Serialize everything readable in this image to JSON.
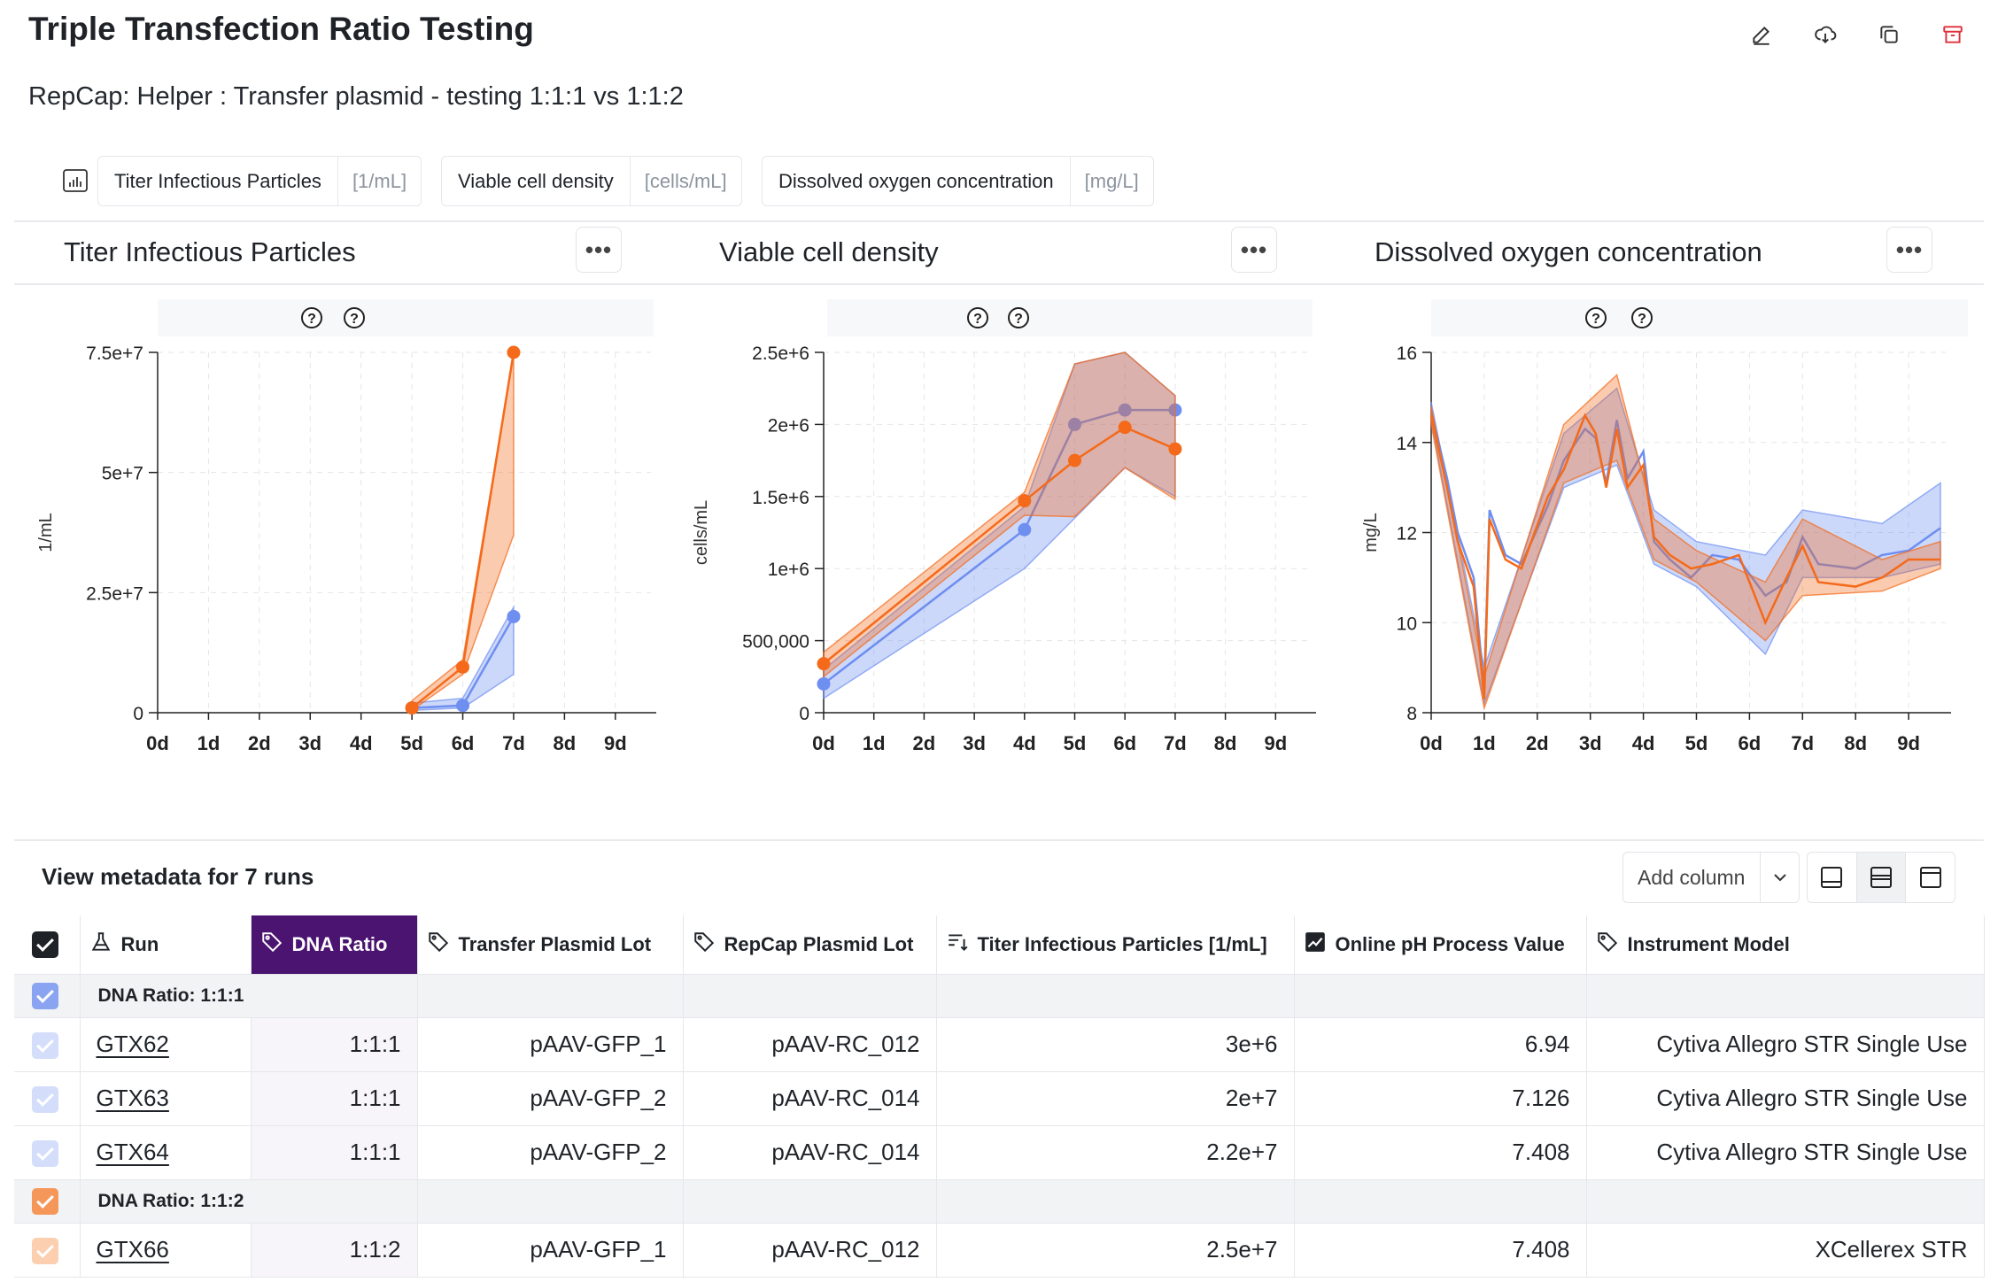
{
  "header": {
    "title": "Triple Transfection Ratio Testing",
    "subtitle": "RepCap: Helper : Transfer plasmid - testing 1:1:1 vs 1:1:2"
  },
  "toolbar": {
    "icons": [
      "pencil-icon",
      "download-icon",
      "duplicate-icon",
      "archive-icon"
    ]
  },
  "measurement_chips": [
    {
      "name": "Titer Infectious Particles",
      "unit": "[1/mL]"
    },
    {
      "name": "Viable cell density",
      "unit": "[cells/mL]"
    },
    {
      "name": "Dissolved oxygen concentration",
      "unit": "[mg/L]"
    }
  ],
  "colors": {
    "series_1_1_1": "#6e8ef0",
    "series_1_1_2": "#f46a1a",
    "highlight_column": "#4a1470",
    "accent_check": "#1f2328"
  },
  "chart_data": [
    {
      "type": "line",
      "title": "Titer Infectious Particles",
      "ylabel": "1/mL",
      "x_ticks": [
        "0d",
        "1d",
        "2d",
        "3d",
        "4d",
        "5d",
        "6d",
        "7d",
        "8d",
        "9d"
      ],
      "ylim": [
        0,
        75000000
      ],
      "y_ticks": [
        "0",
        "2.5e+7",
        "5e+7",
        "7.5e+7"
      ],
      "grid": true,
      "series": [
        {
          "values": [
            {
              "x": 5,
              "y": 1000000
            },
            {
              "x": 6,
              "y": 1500000
            },
            {
              "x": 7,
              "y": 20000000
            }
          ],
          "band_low": [
            {
              "x": 5,
              "y": 500000
            },
            {
              "x": 6,
              "y": 1000000
            },
            {
              "x": 7,
              "y": 8000000
            }
          ],
          "band_high": [
            {
              "x": 5,
              "y": 2000000
            },
            {
              "x": 6,
              "y": 3000000
            },
            {
              "x": 7,
              "y": 22000000
            }
          ]
        },
        {
          "values": [
            {
              "x": 5,
              "y": 1000000
            },
            {
              "x": 6,
              "y": 9500000
            },
            {
              "x": 7,
              "y": 75000000
            }
          ],
          "band_low": [
            {
              "x": 5,
              "y": 500000
            },
            {
              "x": 6,
              "y": 8000000
            },
            {
              "x": 7,
              "y": 37000000
            }
          ],
          "band_high": [
            {
              "x": 5,
              "y": 2500000
            },
            {
              "x": 6,
              "y": 11000000
            },
            {
              "x": 7,
              "y": 75000000
            }
          ]
        }
      ]
    },
    {
      "type": "line",
      "title": "Viable cell density",
      "ylabel": "cells/mL",
      "x_ticks": [
        "0d",
        "1d",
        "2d",
        "3d",
        "4d",
        "5d",
        "6d",
        "7d",
        "8d",
        "9d"
      ],
      "ylim": [
        0,
        2500000
      ],
      "y_ticks": [
        "0",
        "500,000",
        "1e+6",
        "1.5e+6",
        "2e+6",
        "2.5e+6"
      ],
      "grid": true,
      "series": [
        {
          "values": [
            {
              "x": 0,
              "y": 200000
            },
            {
              "x": 4,
              "y": 1270000
            },
            {
              "x": 5,
              "y": 2000000
            },
            {
              "x": 6,
              "y": 2100000
            },
            {
              "x": 7,
              "y": 2100000
            }
          ],
          "band_low": [
            {
              "x": 0,
              "y": 100000
            },
            {
              "x": 4,
              "y": 1000000
            },
            {
              "x": 5,
              "y": 1350000
            },
            {
              "x": 6,
              "y": 1700000
            },
            {
              "x": 7,
              "y": 1500000
            }
          ],
          "band_high": [
            {
              "x": 0,
              "y": 300000
            },
            {
              "x": 4,
              "y": 1430000
            },
            {
              "x": 5,
              "y": 2420000
            },
            {
              "x": 6,
              "y": 2500000
            },
            {
              "x": 7,
              "y": 2200000
            }
          ]
        },
        {
          "values": [
            {
              "x": 0,
              "y": 340000
            },
            {
              "x": 4,
              "y": 1470000
            },
            {
              "x": 5,
              "y": 1750000
            },
            {
              "x": 6,
              "y": 1980000
            },
            {
              "x": 7,
              "y": 1830000
            }
          ],
          "band_low": [
            {
              "x": 0,
              "y": 250000
            },
            {
              "x": 4,
              "y": 1370000
            },
            {
              "x": 5,
              "y": 1360000
            },
            {
              "x": 6,
              "y": 1700000
            },
            {
              "x": 7,
              "y": 1480000
            }
          ],
          "band_high": [
            {
              "x": 0,
              "y": 420000
            },
            {
              "x": 4,
              "y": 1530000
            },
            {
              "x": 5,
              "y": 2420000
            },
            {
              "x": 6,
              "y": 2500000
            },
            {
              "x": 7,
              "y": 2200000
            }
          ]
        }
      ]
    },
    {
      "type": "line",
      "title": "Dissolved oxygen concentration",
      "ylabel": "mg/L",
      "x_ticks": [
        "0d",
        "1d",
        "2d",
        "3d",
        "4d",
        "5d",
        "6d",
        "7d",
        "8d",
        "9d"
      ],
      "ylim": [
        8,
        16
      ],
      "y_ticks": [
        "8",
        "10",
        "12",
        "14",
        "16"
      ],
      "grid": true,
      "series": [
        {
          "values": [
            {
              "x": 0,
              "y": 14.7
            },
            {
              "x": 0.3,
              "y": 13.2
            },
            {
              "x": 0.5,
              "y": 12.0
            },
            {
              "x": 0.8,
              "y": 11.0
            },
            {
              "x": 1.0,
              "y": 8.5
            },
            {
              "x": 1.1,
              "y": 12.5
            },
            {
              "x": 1.4,
              "y": 11.5
            },
            {
              "x": 1.7,
              "y": 11.3
            },
            {
              "x": 2.2,
              "y": 12.6
            },
            {
              "x": 2.5,
              "y": 13.6
            },
            {
              "x": 2.9,
              "y": 14.3
            },
            {
              "x": 3.1,
              "y": 14.1
            },
            {
              "x": 3.3,
              "y": 13.1
            },
            {
              "x": 3.5,
              "y": 14.5
            },
            {
              "x": 3.7,
              "y": 13.2
            },
            {
              "x": 4.0,
              "y": 13.8
            },
            {
              "x": 4.2,
              "y": 11.8
            },
            {
              "x": 4.5,
              "y": 11.4
            },
            {
              "x": 4.9,
              "y": 11.0
            },
            {
              "x": 5.3,
              "y": 11.5
            },
            {
              "x": 5.8,
              "y": 11.4
            },
            {
              "x": 6.3,
              "y": 10.6
            },
            {
              "x": 6.7,
              "y": 10.9
            },
            {
              "x": 7.0,
              "y": 11.9
            },
            {
              "x": 7.3,
              "y": 11.3
            },
            {
              "x": 8.0,
              "y": 11.2
            },
            {
              "x": 8.5,
              "y": 11.5
            },
            {
              "x": 9.0,
              "y": 11.6
            },
            {
              "x": 9.6,
              "y": 12.1
            }
          ],
          "band_low": [
            {
              "x": 0,
              "y": 14.5
            },
            {
              "x": 1.0,
              "y": 8.2
            },
            {
              "x": 2.5,
              "y": 13.0
            },
            {
              "x": 3.5,
              "y": 13.5
            },
            {
              "x": 4.2,
              "y": 11.3
            },
            {
              "x": 5.0,
              "y": 10.8
            },
            {
              "x": 6.3,
              "y": 9.3
            },
            {
              "x": 7.0,
              "y": 11.0
            },
            {
              "x": 8.5,
              "y": 11.0
            },
            {
              "x": 9.6,
              "y": 11.3
            }
          ],
          "band_high": [
            {
              "x": 0,
              "y": 14.9
            },
            {
              "x": 1.0,
              "y": 9.0
            },
            {
              "x": 2.5,
              "y": 14.2
            },
            {
              "x": 3.5,
              "y": 15.2
            },
            {
              "x": 4.2,
              "y": 12.5
            },
            {
              "x": 5.0,
              "y": 11.8
            },
            {
              "x": 6.3,
              "y": 11.5
            },
            {
              "x": 7.0,
              "y": 12.5
            },
            {
              "x": 8.5,
              "y": 12.2
            },
            {
              "x": 9.6,
              "y": 13.1
            }
          ]
        },
        {
          "values": [
            {
              "x": 0,
              "y": 14.6
            },
            {
              "x": 0.3,
              "y": 13.0
            },
            {
              "x": 0.5,
              "y": 11.8
            },
            {
              "x": 0.8,
              "y": 10.8
            },
            {
              "x": 1.0,
              "y": 8.3
            },
            {
              "x": 1.1,
              "y": 12.3
            },
            {
              "x": 1.4,
              "y": 11.4
            },
            {
              "x": 1.7,
              "y": 11.2
            },
            {
              "x": 2.2,
              "y": 12.8
            },
            {
              "x": 2.5,
              "y": 13.4
            },
            {
              "x": 2.9,
              "y": 14.6
            },
            {
              "x": 3.1,
              "y": 14.2
            },
            {
              "x": 3.3,
              "y": 13.0
            },
            {
              "x": 3.5,
              "y": 14.3
            },
            {
              "x": 3.7,
              "y": 13.0
            },
            {
              "x": 4.0,
              "y": 13.5
            },
            {
              "x": 4.2,
              "y": 11.9
            },
            {
              "x": 4.5,
              "y": 11.5
            },
            {
              "x": 4.9,
              "y": 11.2
            },
            {
              "x": 5.3,
              "y": 11.3
            },
            {
              "x": 5.8,
              "y": 11.5
            },
            {
              "x": 6.3,
              "y": 10.0
            },
            {
              "x": 6.7,
              "y": 11.0
            },
            {
              "x": 7.0,
              "y": 11.7
            },
            {
              "x": 7.3,
              "y": 10.9
            },
            {
              "x": 8.0,
              "y": 10.8
            },
            {
              "x": 8.5,
              "y": 11.0
            },
            {
              "x": 9.0,
              "y": 11.4
            },
            {
              "x": 9.6,
              "y": 11.4
            }
          ],
          "band_low": [
            {
              "x": 0,
              "y": 14.4
            },
            {
              "x": 1.0,
              "y": 8.1
            },
            {
              "x": 2.5,
              "y": 13.1
            },
            {
              "x": 3.5,
              "y": 13.6
            },
            {
              "x": 4.2,
              "y": 11.4
            },
            {
              "x": 5.0,
              "y": 10.9
            },
            {
              "x": 6.3,
              "y": 9.6
            },
            {
              "x": 7.0,
              "y": 10.6
            },
            {
              "x": 8.5,
              "y": 10.7
            },
            {
              "x": 9.6,
              "y": 11.2
            }
          ],
          "band_high": [
            {
              "x": 0,
              "y": 14.8
            },
            {
              "x": 1.0,
              "y": 8.8
            },
            {
              "x": 2.5,
              "y": 14.4
            },
            {
              "x": 3.5,
              "y": 15.5
            },
            {
              "x": 4.2,
              "y": 12.3
            },
            {
              "x": 5.0,
              "y": 11.6
            },
            {
              "x": 6.3,
              "y": 10.9
            },
            {
              "x": 7.0,
              "y": 12.3
            },
            {
              "x": 8.5,
              "y": 11.4
            },
            {
              "x": 9.6,
              "y": 11.8
            }
          ]
        }
      ]
    }
  ],
  "metadata": {
    "title": "View metadata for 7 runs",
    "add_column_label": "Add column",
    "columns": [
      {
        "label": "Run",
        "icon": "flask-icon"
      },
      {
        "label": "DNA Ratio",
        "icon": "tag-icon"
      },
      {
        "label": "Transfer Plasmid Lot",
        "icon": "tag-icon"
      },
      {
        "label": "RepCap Plasmid Lot",
        "icon": "tag-icon"
      },
      {
        "label": "Titer Infectious Particles [1/mL]",
        "icon": "sort-icon"
      },
      {
        "label": "Online pH Process Value",
        "icon": "trend-icon"
      },
      {
        "label": "Instrument Model",
        "icon": "tag-icon"
      }
    ],
    "groups": [
      {
        "label": "DNA Ratio: 1:1:1",
        "color": "#6e8ef0",
        "rows": [
          {
            "run": "GTX62",
            "dna": "1:1:1",
            "transfer": "pAAV-GFP_1",
            "repcap": "pAAV-RC_012",
            "titer": "3e+6",
            "ph": "6.94",
            "instrument": "Cytiva Allegro STR Single Use"
          },
          {
            "run": "GTX63",
            "dna": "1:1:1",
            "transfer": "pAAV-GFP_2",
            "repcap": "pAAV-RC_014",
            "titer": "2e+7",
            "ph": "7.126",
            "instrument": "Cytiva Allegro STR Single Use"
          },
          {
            "run": "GTX64",
            "dna": "1:1:1",
            "transfer": "pAAV-GFP_2",
            "repcap": "pAAV-RC_014",
            "titer": "2.2e+7",
            "ph": "7.408",
            "instrument": "Cytiva Allegro STR Single Use"
          }
        ]
      },
      {
        "label": "DNA Ratio: 1:1:2",
        "color": "#f46a1a",
        "rows": [
          {
            "run": "GTX66",
            "dna": "1:1:2",
            "transfer": "pAAV-GFP_1",
            "repcap": "pAAV-RC_012",
            "titer": "2.5e+7",
            "ph": "7.408",
            "instrument": "XCellerex STR"
          }
        ]
      }
    ]
  }
}
